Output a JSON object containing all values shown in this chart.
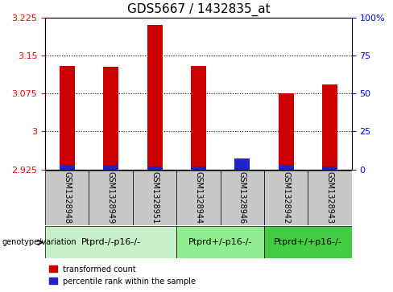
{
  "title": "GDS5667 / 1432835_at",
  "samples": [
    "GSM1328948",
    "GSM1328949",
    "GSM1328951",
    "GSM1328944",
    "GSM1328946",
    "GSM1328942",
    "GSM1328943"
  ],
  "transformed_counts": [
    3.13,
    3.128,
    3.21,
    3.13,
    2.93,
    3.075,
    3.093
  ],
  "percentile_ranks": [
    3,
    3,
    2,
    2,
    7,
    3,
    2
  ],
  "base_value": 2.925,
  "ylim_left": [
    2.925,
    3.225
  ],
  "ylim_right": [
    0,
    100
  ],
  "yticks_left": [
    2.925,
    3.0,
    3.075,
    3.15,
    3.225
  ],
  "yticks_right": [
    0,
    25,
    50,
    75,
    100
  ],
  "ytick_labels_left": [
    "2.925",
    "3",
    "3.075",
    "3.15",
    "3.225"
  ],
  "ytick_labels_right": [
    "0",
    "25",
    "50",
    "75",
    "100%"
  ],
  "grid_values": [
    3.0,
    3.075,
    3.15
  ],
  "groups": [
    {
      "label": "Ptprd-/-p16-/-",
      "indices": [
        0,
        1,
        2
      ],
      "color": "#c8f0c8"
    },
    {
      "label": "Ptprd+/-p16-/-",
      "indices": [
        3,
        4
      ],
      "color": "#90ee90"
    },
    {
      "label": "Ptprd+/+p16-/-",
      "indices": [
        5,
        6
      ],
      "color": "#44cc44"
    }
  ],
  "bar_color_red": "#cc0000",
  "bar_color_blue": "#2222cc",
  "bar_width": 0.35,
  "sample_bg_color": "#c8c8c8",
  "plot_bg_color": "#ffffff",
  "legend_label_red": "transformed count",
  "legend_label_blue": "percentile rank within the sample",
  "genotype_label": "genotype/variation",
  "title_fontsize": 11,
  "tick_fontsize": 8,
  "sample_fontsize": 7,
  "group_fontsize": 8
}
